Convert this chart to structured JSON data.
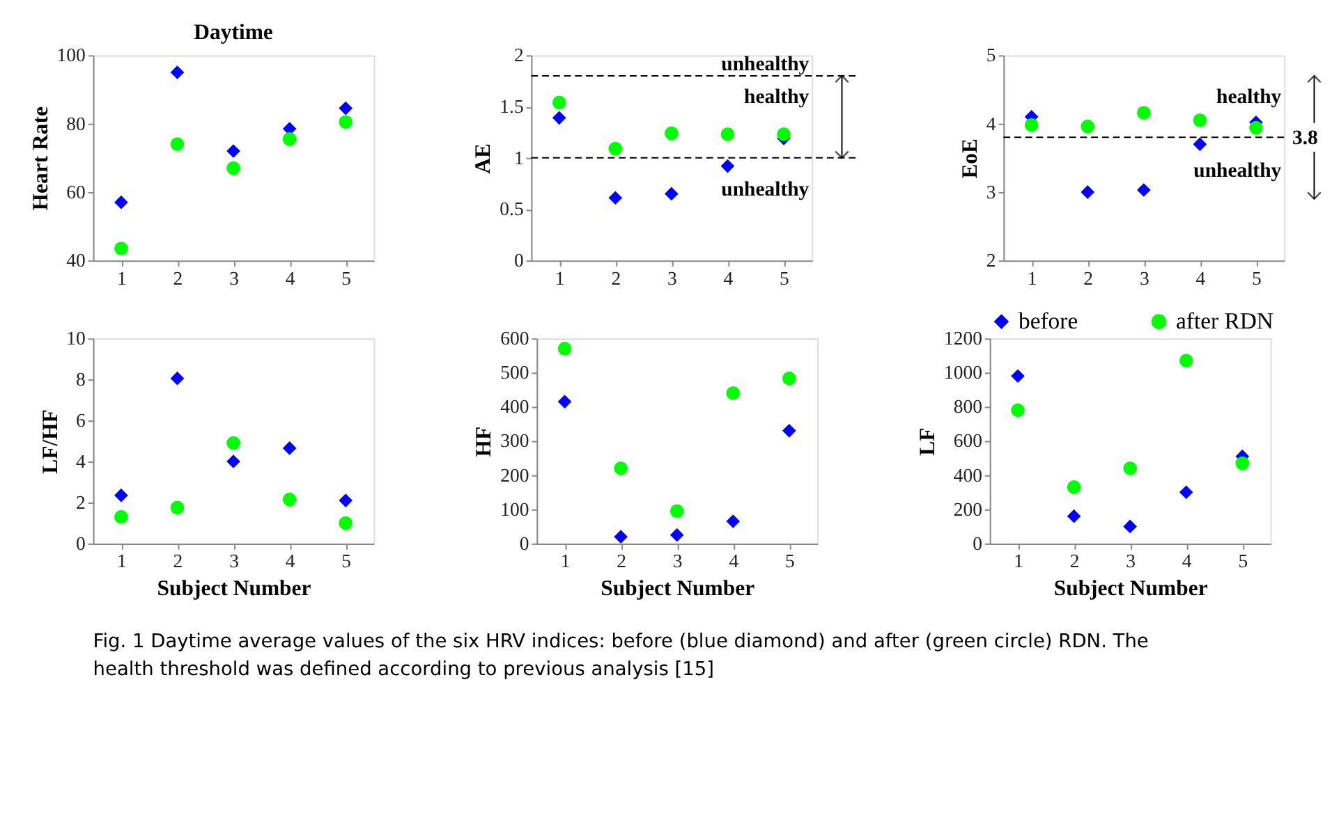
{
  "chart_data": [
    {
      "type": "scatter",
      "title": "Daytime",
      "ylabel": "Heart Rate",
      "x": [
        1,
        2,
        3,
        4,
        5
      ],
      "xlim": [
        0.5,
        5.5
      ],
      "xticks": [
        1,
        2,
        3,
        4,
        5
      ],
      "ylim": [
        40,
        100
      ],
      "yticks": [
        40,
        60,
        80,
        100
      ],
      "grid": false,
      "legend": false,
      "series": [
        {
          "color": "#0000ff",
          "marker": "diamond",
          "values": [
            57,
            95,
            72,
            78.5,
            84.5
          ]
        },
        {
          "color": "#00ff00",
          "marker": "circle",
          "values": [
            43.5,
            74,
            67,
            75.5,
            80.5
          ]
        }
      ]
    },
    {
      "type": "scatter",
      "ylabel": "AE",
      "x": [
        1,
        2,
        3,
        4,
        5
      ],
      "xlim": [
        0.5,
        5.5
      ],
      "xticks": [
        1,
        2,
        3,
        4,
        5
      ],
      "ylim": [
        0,
        2
      ],
      "yticks": [
        0,
        0.5,
        1,
        1.5,
        2
      ],
      "grid": false,
      "legend": false,
      "series": [
        {
          "color": "#0000ff",
          "marker": "diamond",
          "values": [
            1.39,
            0.61,
            0.65,
            0.92,
            1.19
          ]
        },
        {
          "color": "#00ff00",
          "marker": "circle",
          "values": [
            1.54,
            1.09,
            1.24,
            1.23,
            1.23
          ]
        }
      ],
      "ref_lines": [
        {
          "axis": "y",
          "value": 1.8,
          "line_style": "dashed"
        },
        {
          "axis": "y",
          "value": 1,
          "line_style": "dashed"
        }
      ],
      "annotations": [
        "unhealthy",
        "healthy",
        "unhealthy"
      ]
    },
    {
      "type": "scatter",
      "ylabel": "EoE",
      "x": [
        1,
        2,
        3,
        4,
        5
      ],
      "xlim": [
        0.5,
        5.5
      ],
      "xticks": [
        1,
        2,
        3,
        4,
        5
      ],
      "ylim": [
        2,
        5
      ],
      "yticks": [
        2,
        3,
        4,
        5
      ],
      "grid": false,
      "legend": false,
      "series": [
        {
          "color": "#0000ff",
          "marker": "diamond",
          "values": [
            4.1,
            3.0,
            3.03,
            3.7,
            4.02
          ]
        },
        {
          "color": "#00ff00",
          "marker": "circle",
          "values": [
            3.98,
            3.96,
            4.16,
            4.05,
            3.94
          ]
        }
      ],
      "ref_lines": [
        {
          "axis": "y",
          "value": 3.8,
          "label": "3.8",
          "line_style": "dashed"
        }
      ],
      "annotations": [
        "healthy",
        "unhealthy"
      ]
    },
    {
      "type": "scatter",
      "ylabel": "LF/HF",
      "xlabel": "Subject Number",
      "x": [
        1,
        2,
        3,
        4,
        5
      ],
      "xlim": [
        0.5,
        5.5
      ],
      "xticks": [
        1,
        2,
        3,
        4,
        5
      ],
      "ylim": [
        0,
        10
      ],
      "yticks": [
        0,
        2,
        4,
        6,
        8,
        10
      ],
      "grid": false,
      "legend": false,
      "series": [
        {
          "color": "#0000ff",
          "marker": "diamond",
          "values": [
            2.35,
            8.05,
            4.0,
            4.65,
            2.1
          ]
        },
        {
          "color": "#00ff00",
          "marker": "circle",
          "values": [
            1.3,
            1.75,
            4.9,
            2.15,
            1.0
          ]
        }
      ]
    },
    {
      "type": "scatter",
      "ylabel": "HF",
      "xlabel": "Subject Number",
      "x": [
        1,
        2,
        3,
        4,
        5
      ],
      "xlim": [
        0.5,
        5.5
      ],
      "xticks": [
        1,
        2,
        3,
        4,
        5
      ],
      "ylim": [
        0,
        600
      ],
      "yticks": [
        0,
        100,
        200,
        300,
        400,
        500,
        600
      ],
      "grid": false,
      "legend": false,
      "series": [
        {
          "color": "#0000ff",
          "marker": "diamond",
          "values": [
            415,
            20,
            25,
            65,
            330
          ]
        },
        {
          "color": "#00ff00",
          "marker": "circle",
          "values": [
            570,
            220,
            95,
            440,
            483
          ]
        }
      ]
    },
    {
      "type": "scatter",
      "ylabel": "LF",
      "xlabel": "Subject Number",
      "x": [
        1,
        2,
        3,
        4,
        5
      ],
      "xlim": [
        0.5,
        5.5
      ],
      "xticks": [
        1,
        2,
        3,
        4,
        5
      ],
      "ylim": [
        0,
        1200
      ],
      "yticks": [
        0,
        200,
        400,
        600,
        800,
        1000,
        1200
      ],
      "grid": false,
      "legend": "top",
      "series": [
        {
          "name": "before",
          "color": "#0000ff",
          "marker": "diamond",
          "values": [
            980,
            160,
            100,
            300,
            510
          ]
        },
        {
          "name": "after RDN",
          "color": "#00ff00",
          "marker": "circle",
          "values": [
            780,
            330,
            440,
            1070,
            470
          ]
        }
      ],
      "annotations": [
        "Fig. 1  Daytime average values of the six HRV indices: before (blue diamond) and after (green circle) RDN. The",
        "health threshold was defined according to previous analysis [15]"
      ]
    }
  ]
}
